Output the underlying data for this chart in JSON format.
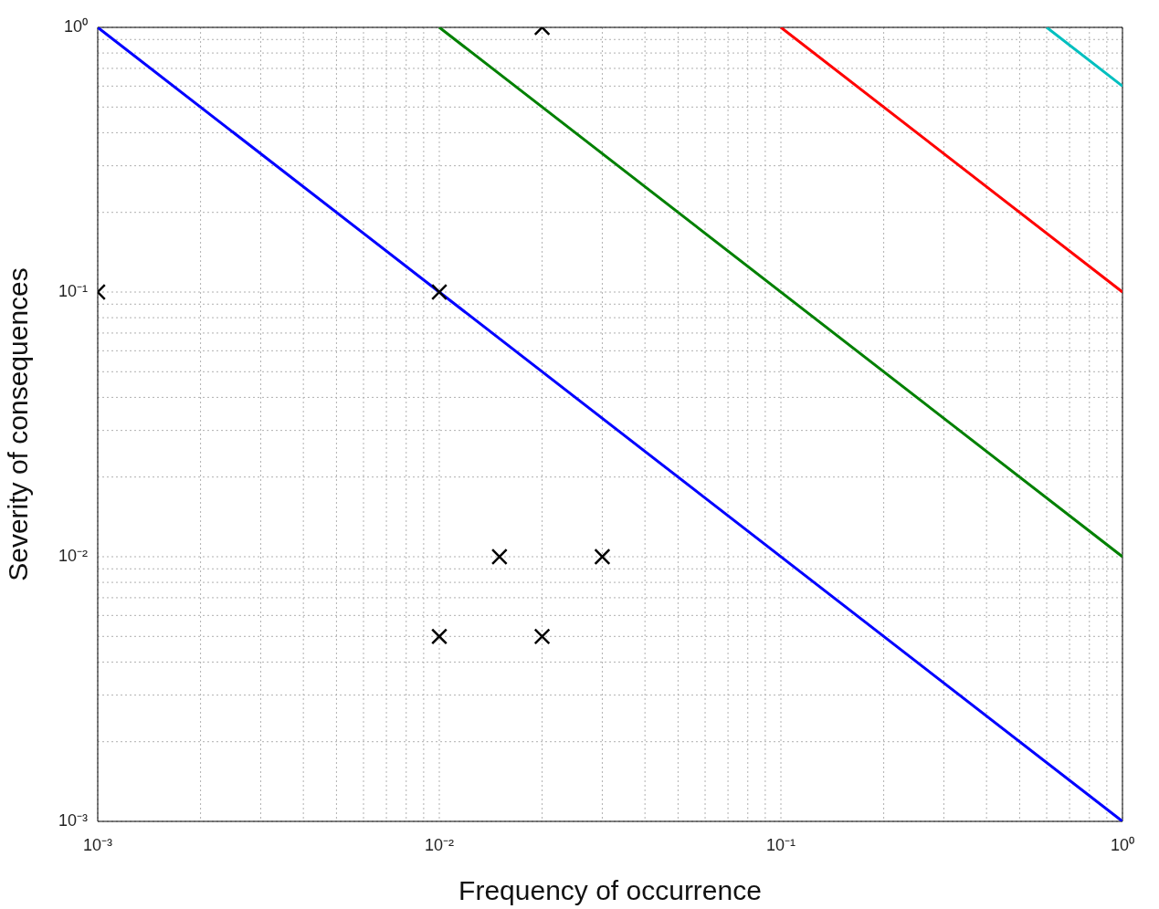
{
  "chart_data": {
    "type": "line",
    "xlabel": "Frequency of occurrence",
    "ylabel": "Severity of consequences",
    "log": "xy",
    "grid": true,
    "legend": false,
    "line_style": "solid",
    "xlim": [
      0.001,
      1
    ],
    "ylim": [
      0.001,
      1
    ],
    "xticks": [
      {
        "value": 0.001,
        "label": "10⁻³"
      },
      {
        "value": 0.01,
        "label": "10⁻²"
      },
      {
        "value": 0.1,
        "label": "10⁻¹"
      },
      {
        "value": 1,
        "label": "10⁰"
      }
    ],
    "yticks": [
      {
        "value": 0.001,
        "label": "10⁻³"
      },
      {
        "value": 0.01,
        "label": "10⁻²"
      },
      {
        "value": 0.1,
        "label": "10⁻¹"
      },
      {
        "value": 1,
        "label": "10⁰"
      }
    ],
    "series": [
      {
        "color": "#0000ff",
        "x": [
          0.001,
          1
        ],
        "values": [
          1,
          0.001
        ]
      },
      {
        "color": "#008000",
        "x": [
          0.01,
          1
        ],
        "values": [
          1,
          0.01
        ]
      },
      {
        "color": "#ff0000",
        "x": [
          0.1,
          1
        ],
        "values": [
          1,
          0.1
        ]
      },
      {
        "color": "#00bfbf",
        "x": [
          0.6,
          1
        ],
        "values": [
          1,
          0.6
        ]
      },
      {
        "type": "scatter",
        "color": "#000000",
        "marker": "cross",
        "x": [
          0.001,
          0.01,
          0.02,
          0.015,
          0.03,
          0.01,
          0.02
        ],
        "values": [
          0.1,
          0.1,
          1,
          0.01,
          0.01,
          0.005,
          0.005
        ]
      }
    ]
  }
}
